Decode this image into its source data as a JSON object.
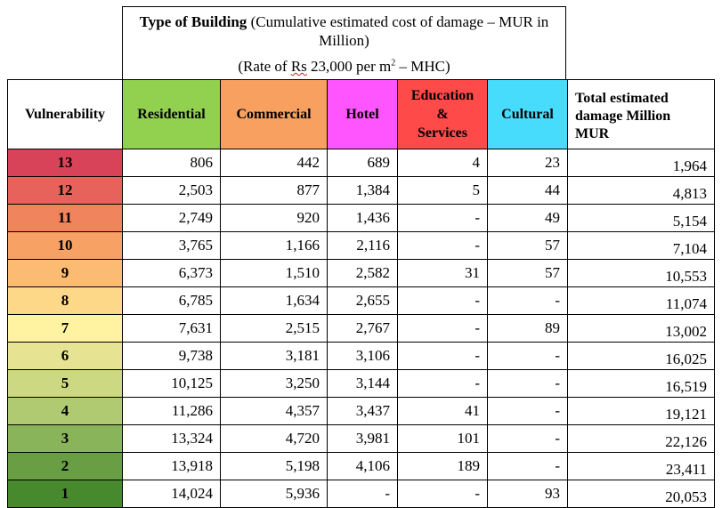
{
  "title": {
    "bold": "Type of Building",
    "rest": " (Cumulative estimated cost of damage – MUR in Million)",
    "rate_prefix": "(Rate of ",
    "rate_rs": "Rs",
    "rate_mid": " 23,000 per m",
    "rate_sup": "2",
    "rate_suffix": " – MHC)"
  },
  "headers": [
    {
      "label": "Vulnerability",
      "color": "#ffffff"
    },
    {
      "label": "Residential",
      "color": "#92d050"
    },
    {
      "label": "Commercial",
      "color": "#f7a060"
    },
    {
      "label": "Hotel",
      "color": "#ff55ff"
    },
    {
      "label": "Education & Services",
      "color": "#ff4a4a"
    },
    {
      "label": "Cultural",
      "color": "#48dcfc"
    },
    {
      "label": "Total estimated damage Million MUR",
      "color": "#ffffff"
    }
  ],
  "rows": [
    {
      "vulnerability": "13",
      "color": "#d9435a",
      "values": [
        "806",
        "442",
        "689",
        "4",
        "23",
        "1,964"
      ]
    },
    {
      "vulnerability": "12",
      "color": "#e6625a",
      "values": [
        "2,503",
        "877",
        "1,384",
        "5",
        "44",
        "4,813"
      ]
    },
    {
      "vulnerability": "11",
      "color": "#f0845c",
      "values": [
        "2,749",
        "920",
        "1,436",
        "-",
        "49",
        "5,154"
      ]
    },
    {
      "vulnerability": "10",
      "color": "#f7a264",
      "values": [
        "3,765",
        "1,166",
        "2,116",
        "-",
        "57",
        "7,104"
      ]
    },
    {
      "vulnerability": "9",
      "color": "#fbbb72",
      "values": [
        "6,373",
        "1,510",
        "2,582",
        "31",
        "57",
        "10,553"
      ]
    },
    {
      "vulnerability": "8",
      "color": "#fdd888",
      "values": [
        "6,785",
        "1,634",
        "2,655",
        "-",
        "-",
        "11,074"
      ]
    },
    {
      "vulnerability": "7",
      "color": "#fff2a0",
      "values": [
        "7,631",
        "2,515",
        "2,767",
        "-",
        "89",
        "13,002"
      ]
    },
    {
      "vulnerability": "6",
      "color": "#e6e492",
      "values": [
        "9,738",
        "3,181",
        "3,106",
        "-",
        "-",
        "16,025"
      ]
    },
    {
      "vulnerability": "5",
      "color": "#ccd882",
      "values": [
        "10,125",
        "3,250",
        "3,144",
        "-",
        "-",
        "16,519"
      ]
    },
    {
      "vulnerability": "4",
      "color": "#afca70",
      "values": [
        "11,286",
        "4,357",
        "3,437",
        "41",
        "-",
        "19,121"
      ]
    },
    {
      "vulnerability": "3",
      "color": "#8ab45a",
      "values": [
        "13,324",
        "4,720",
        "3,981",
        "101",
        "-",
        "22,126"
      ]
    },
    {
      "vulnerability": "2",
      "color": "#6a9e44",
      "values": [
        "13,918",
        "5,198",
        "4,106",
        "189",
        "-",
        "23,411"
      ]
    },
    {
      "vulnerability": "1",
      "color": "#478a2e",
      "values": [
        "14,024",
        "5,936",
        "-",
        "-",
        "93",
        "20,053"
      ]
    }
  ]
}
